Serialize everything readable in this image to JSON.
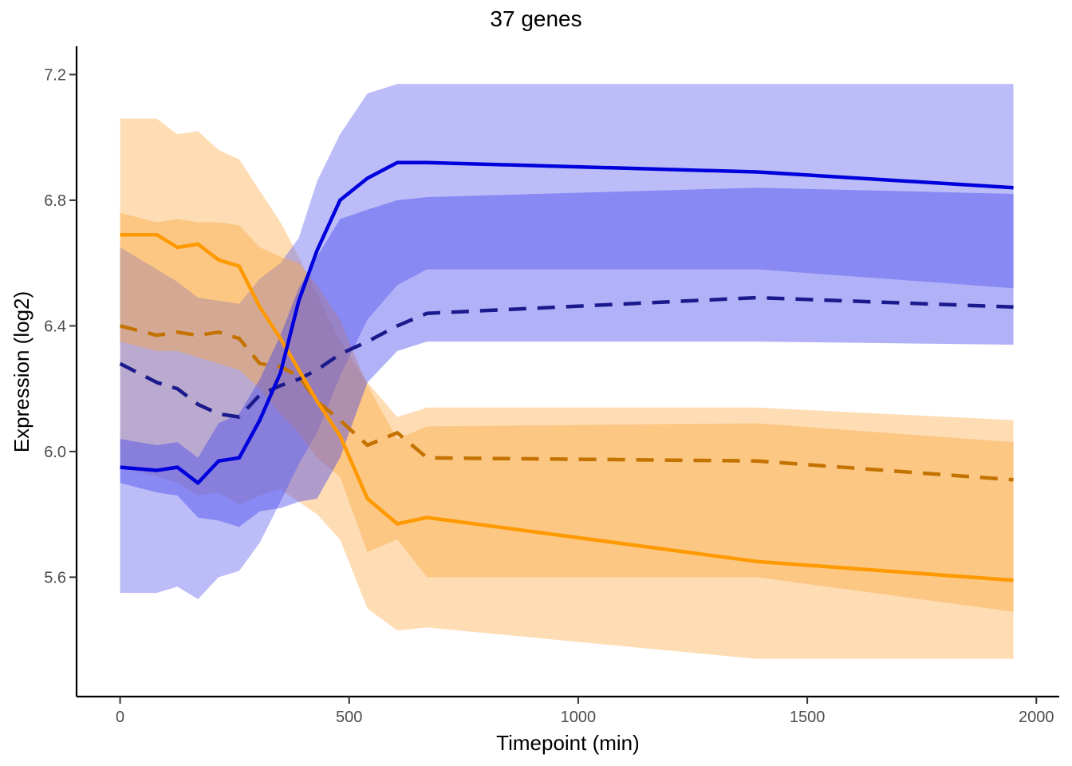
{
  "chart_data": {
    "type": "line",
    "title": "37 genes",
    "xlabel": "Timepoint (min)",
    "ylabel": "Expression (log2)",
    "xlim": [
      -95,
      2050
    ],
    "ylim": [
      5.22,
      7.29
    ],
    "xticks": [
      0,
      500,
      1000,
      1500,
      2000
    ],
    "yticks": [
      5.6,
      6.0,
      6.4,
      6.8,
      7.2
    ],
    "ytick_labels": [
      "5.6",
      "6.0",
      "6.4",
      "6.8",
      "7.2"
    ],
    "grid": false,
    "legend": "none",
    "colors": {
      "orange_outer": "#fdb45c",
      "orange_inner": "#f9a43a",
      "blue_outer": "#6b6cf0",
      "blue_inner": "#3b3bee",
      "orange_line": "#ff9900",
      "blue_line": "#0000dd",
      "orange_dash": "#c47200",
      "blue_dash": "#1a1a8c"
    },
    "series": [
      {
        "color": "orange",
        "x": [
          0,
          80,
          125,
          170,
          215,
          260,
          305,
          350,
          390,
          430,
          480,
          540,
          605,
          670,
          1390,
          1950
        ],
        "solid": [
          6.69,
          6.69,
          6.65,
          6.66,
          6.61,
          6.59,
          6.46,
          6.36,
          6.26,
          6.16,
          6.05,
          5.85,
          5.77,
          5.79,
          5.65,
          5.59
        ],
        "dashed": [
          6.4,
          6.37,
          6.38,
          6.37,
          6.38,
          6.36,
          6.28,
          6.27,
          6.24,
          6.16,
          6.1,
          6.02,
          6.06,
          5.98,
          5.97,
          5.91
        ],
        "outer_low": [
          5.95,
          5.92,
          5.9,
          5.86,
          5.87,
          5.83,
          5.86,
          5.88,
          5.84,
          5.8,
          5.72,
          5.5,
          5.43,
          5.44,
          5.34,
          5.34
        ],
        "outer_high": [
          7.06,
          7.06,
          7.01,
          7.02,
          6.96,
          6.93,
          6.83,
          6.73,
          6.62,
          6.5,
          6.35,
          6.22,
          6.11,
          6.14,
          6.14,
          6.1
        ],
        "inner_low": [
          6.35,
          6.32,
          6.32,
          6.3,
          6.28,
          6.26,
          6.2,
          6.12,
          6.06,
          5.98,
          5.92,
          5.68,
          5.72,
          5.6,
          5.6,
          5.49
        ],
        "inner_high": [
          6.76,
          6.73,
          6.74,
          6.73,
          6.73,
          6.72,
          6.65,
          6.62,
          6.6,
          6.53,
          6.42,
          6.21,
          6.04,
          6.08,
          6.09,
          6.03
        ]
      },
      {
        "color": "blue",
        "x": [
          0,
          80,
          125,
          170,
          215,
          260,
          305,
          350,
          390,
          430,
          480,
          540,
          605,
          670,
          1390,
          1950
        ],
        "solid": [
          5.95,
          5.94,
          5.95,
          5.9,
          5.97,
          5.98,
          6.1,
          6.25,
          6.48,
          6.64,
          6.8,
          6.87,
          6.92,
          6.92,
          6.89,
          6.84
        ],
        "dashed": [
          6.28,
          6.22,
          6.2,
          6.15,
          6.12,
          6.11,
          6.18,
          6.21,
          6.23,
          6.26,
          6.31,
          6.35,
          6.4,
          6.44,
          6.49,
          6.46
        ],
        "outer_low": [
          5.55,
          5.55,
          5.57,
          5.53,
          5.6,
          5.62,
          5.71,
          5.84,
          5.96,
          6.06,
          6.24,
          6.42,
          6.53,
          6.58,
          6.58,
          6.52
        ],
        "outer_high": [
          6.65,
          6.58,
          6.54,
          6.49,
          6.48,
          6.47,
          6.55,
          6.6,
          6.68,
          6.86,
          7.01,
          7.14,
          7.17,
          7.17,
          7.17,
          7.17
        ],
        "inner_low": [
          5.9,
          5.87,
          5.86,
          5.79,
          5.78,
          5.76,
          5.81,
          5.82,
          5.84,
          5.85,
          5.98,
          6.22,
          6.32,
          6.35,
          6.35,
          6.34
        ],
        "inner_high": [
          6.04,
          6.02,
          6.03,
          5.98,
          6.09,
          6.12,
          6.23,
          6.37,
          6.52,
          6.62,
          6.74,
          6.77,
          6.8,
          6.81,
          6.84,
          6.82
        ]
      }
    ]
  }
}
